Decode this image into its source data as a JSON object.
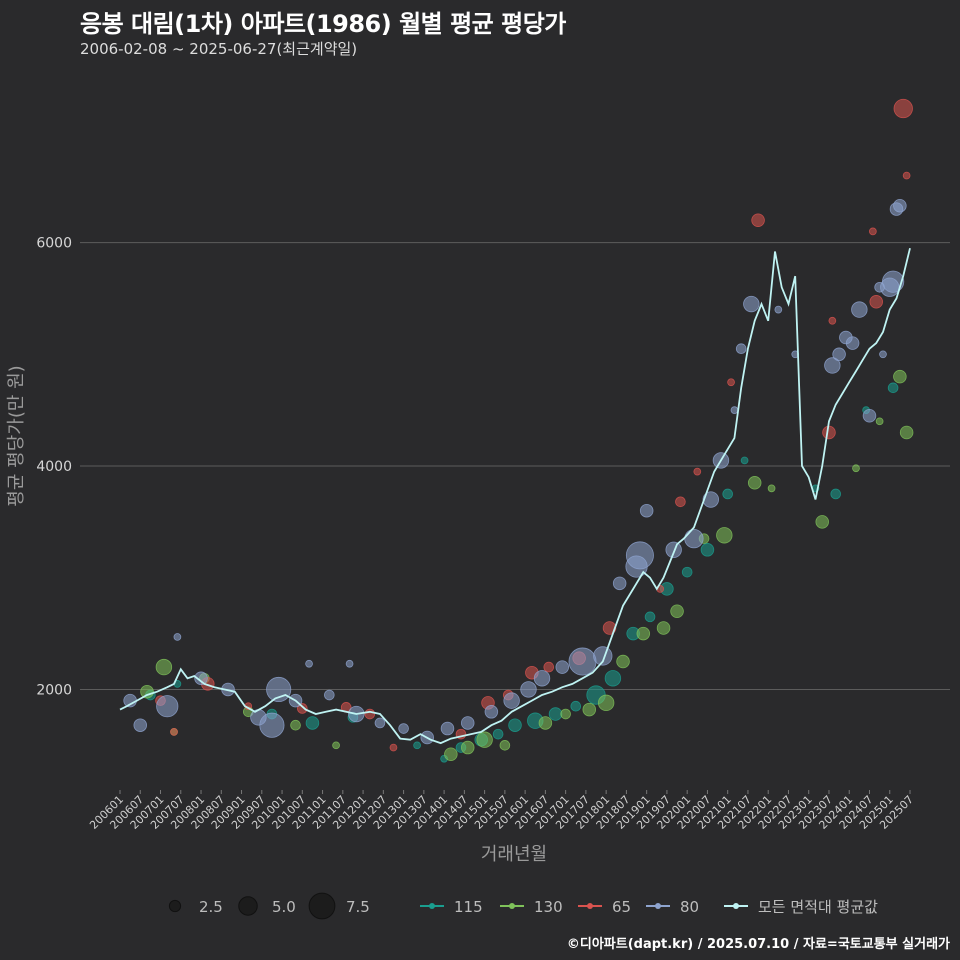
{
  "header": {
    "title": "응봉 대림(1차) 아파트(1986) 월별 평균 평당가",
    "subtitle": "2006-02-08 ~ 2025-06-27(최근계약일)"
  },
  "footer": {
    "credit": "©디아파트(dapt.kr) / 2025.07.10 / 자료=국토교통부 실거래가"
  },
  "colors": {
    "background": "#2a2a2c",
    "s115": "#1a9e8f",
    "s130": "#7fc25a",
    "s65": "#d9534f",
    "s80": "#8ea4cf",
    "avg": "#bff3f3"
  },
  "chart_data": {
    "type": "scatter",
    "title": "응봉 대림(1차) 아파트(1986) 월별 평균 평당가",
    "xlabel": "거래년월",
    "ylabel": "평균 평당가(만 원)",
    "ylim": [
      1100,
      7500
    ],
    "yticks": [
      2000,
      4000,
      6000
    ],
    "x_range": [
      "2006-01",
      "2025-07"
    ],
    "xtick_labels": [
      "200601",
      "200607",
      "200701",
      "200707",
      "200801",
      "200807",
      "200901",
      "200907",
      "201001",
      "201007",
      "201101",
      "201107",
      "201201",
      "201207",
      "201301",
      "201307",
      "201401",
      "201407",
      "201501",
      "201507",
      "201601",
      "201607",
      "201701",
      "201707",
      "201801",
      "201807",
      "201901",
      "201907",
      "202001",
      "202007",
      "202101",
      "202107",
      "202201",
      "202207",
      "202301",
      "202307",
      "202401",
      "202407",
      "202501",
      "202507"
    ],
    "size_legend": [
      {
        "label": "2.5",
        "value": 2.5
      },
      {
        "label": "5.0",
        "value": 5.0
      },
      {
        "label": "7.5",
        "value": 7.5
      }
    ],
    "series_legend": [
      {
        "key": "115",
        "label": "115"
      },
      {
        "key": "130",
        "label": "130"
      },
      {
        "key": "65",
        "label": "65"
      },
      {
        "key": "80",
        "label": "80"
      },
      {
        "key": "avg",
        "label": "모든 면적대 평균값"
      }
    ],
    "series": [
      {
        "name": "115",
        "points": [
          [
            "2006-10",
            1950,
            2
          ],
          [
            "2007-06",
            2050,
            1
          ],
          [
            "2009-10",
            1780,
            2
          ],
          [
            "2010-10",
            1700,
            3
          ],
          [
            "2011-10",
            1750,
            2
          ],
          [
            "2013-05",
            1500,
            1
          ],
          [
            "2014-01",
            1380,
            1
          ],
          [
            "2014-06",
            1480,
            2
          ],
          [
            "2014-12",
            1550,
            3
          ],
          [
            "2015-05",
            1600,
            2
          ],
          [
            "2015-10",
            1680,
            3
          ],
          [
            "2016-04",
            1720,
            4
          ],
          [
            "2016-10",
            1780,
            3
          ],
          [
            "2017-04",
            1850,
            2
          ],
          [
            "2017-10",
            1950,
            5
          ],
          [
            "2018-03",
            2100,
            4
          ],
          [
            "2018-09",
            2500,
            3
          ],
          [
            "2019-02",
            2650,
            2
          ],
          [
            "2019-07",
            2900,
            3
          ],
          [
            "2020-01",
            3050,
            2
          ],
          [
            "2020-07",
            3250,
            3
          ],
          [
            "2021-01",
            3750,
            2
          ],
          [
            "2021-06",
            4050,
            1
          ],
          [
            "2023-03",
            3800,
            1
          ],
          [
            "2023-09",
            3750,
            2
          ],
          [
            "2024-06",
            4500,
            1
          ],
          [
            "2025-02",
            4700,
            2
          ]
        ]
      },
      {
        "name": "130",
        "points": [
          [
            "2006-09",
            1980,
            3
          ],
          [
            "2007-02",
            2200,
            4
          ],
          [
            "2007-05",
            1620,
            1
          ],
          [
            "2008-02",
            2100,
            2
          ],
          [
            "2009-03",
            1800,
            2
          ],
          [
            "2010-05",
            1680,
            2
          ],
          [
            "2011-05",
            1500,
            1
          ],
          [
            "2014-03",
            1420,
            3
          ],
          [
            "2014-08",
            1480,
            3
          ],
          [
            "2015-01",
            1550,
            4
          ],
          [
            "2015-07",
            1500,
            2
          ],
          [
            "2016-07",
            1700,
            3
          ],
          [
            "2017-01",
            1780,
            2
          ],
          [
            "2017-08",
            1820,
            3
          ],
          [
            "2018-01",
            1880,
            4
          ],
          [
            "2018-06",
            2250,
            3
          ],
          [
            "2018-12",
            2500,
            3
          ],
          [
            "2019-06",
            2550,
            3
          ],
          [
            "2019-10",
            2700,
            3
          ],
          [
            "2020-06",
            3350,
            2
          ],
          [
            "2020-12",
            3380,
            4
          ],
          [
            "2021-09",
            3850,
            3
          ],
          [
            "2022-02",
            3800,
            1
          ],
          [
            "2023-05",
            3500,
            3
          ],
          [
            "2024-03",
            3980,
            1
          ],
          [
            "2024-10",
            4400,
            1
          ],
          [
            "2025-06",
            4300,
            3
          ],
          [
            "2025-04",
            4800,
            3
          ]
        ]
      },
      {
        "name": "65",
        "points": [
          [
            "2007-01",
            1900,
            2
          ],
          [
            "2007-05",
            1620,
            1
          ],
          [
            "2008-03",
            2050,
            3
          ],
          [
            "2009-03",
            1850,
            1
          ],
          [
            "2010-07",
            1830,
            2
          ],
          [
            "2011-08",
            1840,
            2
          ],
          [
            "2012-03",
            1780,
            2
          ],
          [
            "2012-10",
            1480,
            1
          ],
          [
            "2014-06",
            1600,
            2
          ],
          [
            "2015-02",
            1880,
            3
          ],
          [
            "2015-08",
            1950,
            2
          ],
          [
            "2016-03",
            2150,
            3
          ],
          [
            "2016-08",
            2200,
            2
          ],
          [
            "2017-05",
            2280,
            3
          ],
          [
            "2018-02",
            2550,
            3
          ],
          [
            "2019-05",
            2900,
            1
          ],
          [
            "2019-11",
            3680,
            2
          ],
          [
            "2020-04",
            3950,
            1
          ],
          [
            "2021-02",
            4750,
            1
          ],
          [
            "2021-10",
            6200,
            3
          ],
          [
            "2023-07",
            4300,
            3
          ],
          [
            "2023-08",
            5300,
            1
          ],
          [
            "2024-08",
            6100,
            1
          ],
          [
            "2024-09",
            5470,
            3
          ],
          [
            "2025-05",
            7200,
            5
          ],
          [
            "2025-06",
            6600,
            1
          ]
        ]
      },
      {
        "name": "80",
        "points": [
          [
            "2006-04",
            1900,
            3
          ],
          [
            "2006-07",
            1680,
            3
          ],
          [
            "2007-03",
            1850,
            6
          ],
          [
            "2007-06",
            2470,
            1
          ],
          [
            "2008-01",
            2100,
            3
          ],
          [
            "2008-09",
            2000,
            3
          ],
          [
            "2009-06",
            1750,
            4
          ],
          [
            "2009-10",
            1680,
            7
          ],
          [
            "2009-12",
            2000,
            7
          ],
          [
            "2010-05",
            1900,
            3
          ],
          [
            "2010-09",
            2230,
            1
          ],
          [
            "2011-03",
            1950,
            2
          ],
          [
            "2011-09",
            2230,
            1
          ],
          [
            "2011-11",
            1780,
            4
          ],
          [
            "2012-06",
            1700,
            2
          ],
          [
            "2013-01",
            1650,
            2
          ],
          [
            "2013-08",
            1570,
            3
          ],
          [
            "2014-02",
            1650,
            3
          ],
          [
            "2014-08",
            1700,
            3
          ],
          [
            "2015-03",
            1800,
            3
          ],
          [
            "2015-09",
            1900,
            4
          ],
          [
            "2016-02",
            2000,
            4
          ],
          [
            "2016-06",
            2100,
            4
          ],
          [
            "2016-12",
            2200,
            3
          ],
          [
            "2017-06",
            2250,
            8
          ],
          [
            "2017-12",
            2300,
            5
          ],
          [
            "2018-05",
            2950,
            3
          ],
          [
            "2018-10",
            3100,
            6
          ],
          [
            "2018-11",
            3200,
            8
          ],
          [
            "2019-01",
            3600,
            3
          ],
          [
            "2019-09",
            3250,
            4
          ],
          [
            "2020-03",
            3350,
            5
          ],
          [
            "2020-08",
            3700,
            4
          ],
          [
            "2020-11",
            4050,
            4
          ],
          [
            "2021-03",
            4500,
            1
          ],
          [
            "2021-05",
            5050,
            2
          ],
          [
            "2021-08",
            5450,
            4
          ],
          [
            "2022-04",
            5400,
            1
          ],
          [
            "2022-09",
            5000,
            1
          ],
          [
            "2023-08",
            4900,
            4
          ],
          [
            "2023-10",
            5000,
            3
          ],
          [
            "2023-12",
            5150,
            3
          ],
          [
            "2024-02",
            5100,
            3
          ],
          [
            "2024-04",
            5400,
            4
          ],
          [
            "2024-07",
            4450,
            3
          ],
          [
            "2024-10",
            5600,
            2
          ],
          [
            "2025-01",
            5600,
            5
          ],
          [
            "2025-02",
            5650,
            6
          ],
          [
            "2025-03",
            6300,
            3
          ],
          [
            "2025-04",
            6330,
            3
          ],
          [
            "2024-11",
            5000,
            1
          ]
        ]
      },
      {
        "name": "모든 면적대 평균값",
        "points": [
          [
            "2006-01",
            1820
          ],
          [
            "2006-03",
            1850
          ],
          [
            "2006-06",
            1900
          ],
          [
            "2006-09",
            1950
          ],
          [
            "2006-12",
            1980
          ],
          [
            "2007-03",
            2020
          ],
          [
            "2007-05",
            2050
          ],
          [
            "2007-07",
            2180
          ],
          [
            "2007-09",
            2100
          ],
          [
            "2007-11",
            2120
          ],
          [
            "2008-02",
            2050
          ],
          [
            "2008-05",
            2020
          ],
          [
            "2008-08",
            2000
          ],
          [
            "2008-11",
            1980
          ],
          [
            "2009-02",
            1850
          ],
          [
            "2009-05",
            1800
          ],
          [
            "2009-08",
            1850
          ],
          [
            "2009-11",
            1920
          ],
          [
            "2010-02",
            1950
          ],
          [
            "2010-05",
            1900
          ],
          [
            "2010-08",
            1820
          ],
          [
            "2010-11",
            1780
          ],
          [
            "2011-02",
            1800
          ],
          [
            "2011-05",
            1820
          ],
          [
            "2011-08",
            1800
          ],
          [
            "2011-11",
            1780
          ],
          [
            "2012-03",
            1800
          ],
          [
            "2012-06",
            1780
          ],
          [
            "2012-09",
            1680
          ],
          [
            "2012-12",
            1560
          ],
          [
            "2013-03",
            1550
          ],
          [
            "2013-06",
            1600
          ],
          [
            "2013-09",
            1550
          ],
          [
            "2013-12",
            1520
          ],
          [
            "2014-03",
            1560
          ],
          [
            "2014-06",
            1580
          ],
          [
            "2014-09",
            1600
          ],
          [
            "2014-12",
            1620
          ],
          [
            "2015-03",
            1680
          ],
          [
            "2015-06",
            1720
          ],
          [
            "2015-09",
            1800
          ],
          [
            "2015-12",
            1850
          ],
          [
            "2016-03",
            1900
          ],
          [
            "2016-06",
            1950
          ],
          [
            "2016-09",
            1980
          ],
          [
            "2016-12",
            2020
          ],
          [
            "2017-03",
            2050
          ],
          [
            "2017-06",
            2100
          ],
          [
            "2017-09",
            2150
          ],
          [
            "2017-12",
            2250
          ],
          [
            "2018-03",
            2500
          ],
          [
            "2018-06",
            2750
          ],
          [
            "2018-09",
            2900
          ],
          [
            "2018-12",
            3050
          ],
          [
            "2019-02",
            3000
          ],
          [
            "2019-04",
            2900
          ],
          [
            "2019-06",
            3000
          ],
          [
            "2019-08",
            3150
          ],
          [
            "2019-10",
            3300
          ],
          [
            "2019-12",
            3350
          ],
          [
            "2020-03",
            3450
          ],
          [
            "2020-06",
            3700
          ],
          [
            "2020-09",
            3950
          ],
          [
            "2020-12",
            4100
          ],
          [
            "2021-03",
            4250
          ],
          [
            "2021-05",
            4700
          ],
          [
            "2021-07",
            5050
          ],
          [
            "2021-09",
            5300
          ],
          [
            "2021-11",
            5450
          ],
          [
            "2022-01",
            5300
          ],
          [
            "2022-03",
            5920
          ],
          [
            "2022-05",
            5600
          ],
          [
            "2022-07",
            5450
          ],
          [
            "2022-09",
            5700
          ],
          [
            "2022-11",
            4000
          ],
          [
            "2023-01",
            3900
          ],
          [
            "2023-03",
            3700
          ],
          [
            "2023-05",
            4000
          ],
          [
            "2023-07",
            4400
          ],
          [
            "2023-09",
            4550
          ],
          [
            "2023-11",
            4650
          ],
          [
            "2024-01",
            4750
          ],
          [
            "2024-03",
            4850
          ],
          [
            "2024-05",
            4950
          ],
          [
            "2024-07",
            5050
          ],
          [
            "2024-09",
            5100
          ],
          [
            "2024-11",
            5200
          ],
          [
            "2025-01",
            5400
          ],
          [
            "2025-03",
            5500
          ],
          [
            "2025-05",
            5700
          ],
          [
            "2025-07",
            5950
          ]
        ]
      }
    ]
  }
}
